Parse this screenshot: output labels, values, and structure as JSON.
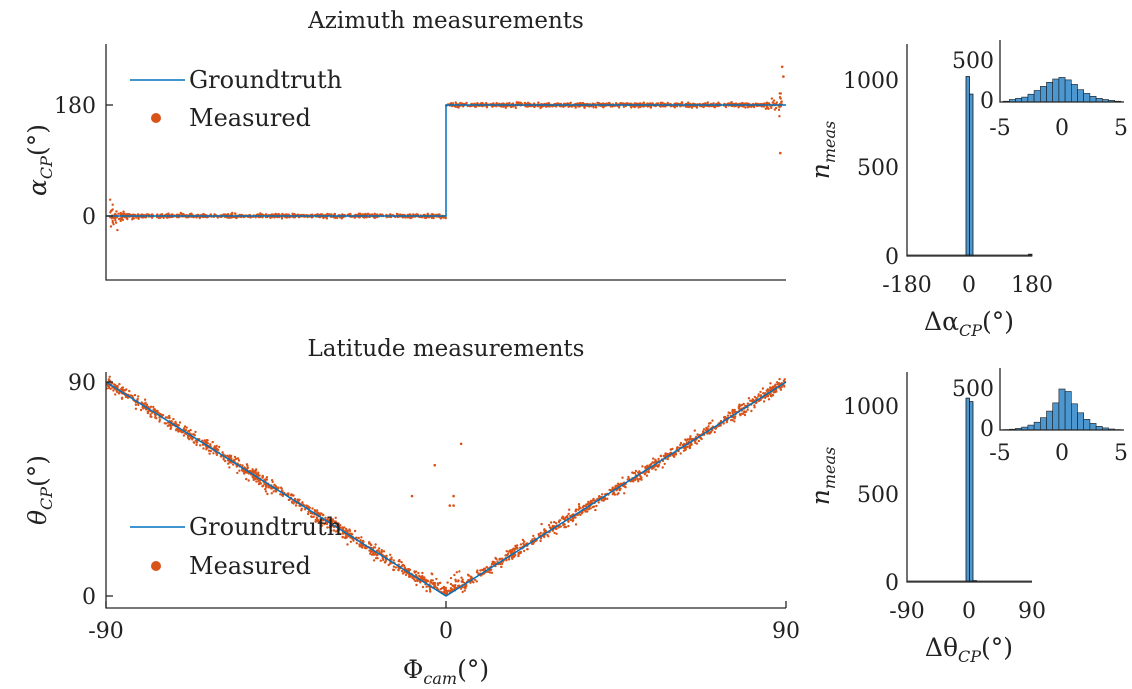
{
  "chart_data": [
    {
      "type": "scatter",
      "title": "Azimuth measurements",
      "xlabel": "",
      "ylabel": {
        "base": "α",
        "sub": "CP",
        "unit": "(°)"
      },
      "xlim": [
        -90,
        90
      ],
      "ylim": [
        -80,
        230
      ],
      "yticks": [
        "0",
        "180"
      ],
      "legend": {
        "position": "top-left",
        "entries": [
          "Groundtruth",
          "Measured"
        ]
      },
      "grid": false,
      "series": [
        {
          "name": "Groundtruth",
          "style": "line",
          "color": "#0072BD",
          "points": [
            [
              -90,
              0
            ],
            [
              0,
              0
            ],
            [
              0,
              180
            ],
            [
              90,
              180
            ]
          ]
        },
        {
          "name": "Measured",
          "style": "markers",
          "color": "#D95319",
          "description_values": {
            "x_range": [
              -90,
              90
            ],
            "noise_sd_deg": 2,
            "left_branch_y": 0,
            "right_branch_y": 180,
            "outliers": [
              [
                89,
                242
              ],
              [
                88.5,
                102
              ],
              [
                89.3,
                226
              ]
            ]
          }
        }
      ]
    },
    {
      "type": "scatter",
      "title": "Latitude measurements",
      "xlabel": {
        "base": "Φ",
        "sub": "cam",
        "unit": "(°)"
      },
      "ylabel": {
        "base": "θ",
        "sub": "CP",
        "unit": "(°)"
      },
      "xlim": [
        -90,
        90
      ],
      "ylim": [
        -3,
        92
      ],
      "xticks": [
        "-90",
        "0",
        "90"
      ],
      "yticks": [
        "0",
        "90"
      ],
      "legend": {
        "position": "bottom-left",
        "entries": [
          "Groundtruth",
          "Measured"
        ]
      },
      "grid": false,
      "series": [
        {
          "name": "Groundtruth",
          "style": "line",
          "color": "#0072BD",
          "points": [
            [
              -90,
              90
            ],
            [
              0,
              0
            ],
            [
              90,
              90
            ]
          ]
        },
        {
          "name": "Measured",
          "style": "markers",
          "color": "#D95319",
          "description_values": {
            "relation": "y = |x|",
            "noise_sd_deg": 1.5,
            "outliers": [
              [
                -3,
                55
              ],
              [
                4,
                64
              ],
              [
                -9,
                42
              ],
              [
                2,
                42
              ],
              [
                1,
                38
              ],
              [
                2,
                38
              ]
            ]
          }
        }
      ]
    },
    {
      "type": "bar",
      "title": "",
      "xlabel": {
        "base": "Δα",
        "sub": "CP",
        "unit": "(°)"
      },
      "ylabel": {
        "base": "n",
        "sub": "meas"
      },
      "xlim": [
        -180,
        180
      ],
      "ylim": [
        0,
        1200
      ],
      "xticks": [
        "-180",
        "0",
        "180"
      ],
      "yticks": [
        "0",
        "500",
        "1000"
      ],
      "color": "#4C97CF",
      "bins": [
        [
          -10,
          0,
          1020
        ],
        [
          0,
          10,
          920
        ],
        [
          170,
          180,
          10
        ]
      ],
      "inset": {
        "xlim": [
          -5,
          5
        ],
        "ylim": [
          0,
          750
        ],
        "xticks": [
          "-5",
          "0",
          "5"
        ],
        "yticks": [
          "0",
          "500"
        ],
        "bin_centers": [
          -4.5,
          -4,
          -3.5,
          -3,
          -2.5,
          -2,
          -1.5,
          -1,
          -0.5,
          0,
          0.5,
          1,
          1.5,
          2,
          2.5,
          3,
          3.5,
          4,
          4.5
        ],
        "values": [
          10,
          30,
          45,
          60,
          95,
          140,
          190,
          240,
          280,
          300,
          270,
          215,
          150,
          105,
          70,
          45,
          30,
          20,
          10
        ]
      }
    },
    {
      "type": "bar",
      "title": "",
      "xlabel": {
        "base": "Δθ",
        "sub": "CP",
        "unit": "(°)"
      },
      "ylabel": {
        "base": "n",
        "sub": "meas"
      },
      "xlim": [
        -90,
        90
      ],
      "ylim": [
        0,
        1200
      ],
      "xticks": [
        "-90",
        "0",
        "90"
      ],
      "yticks": [
        "0",
        "500",
        "1000"
      ],
      "color": "#4C97CF",
      "bins": [
        [
          -5,
          0,
          1045
        ],
        [
          0,
          5,
          1025
        ],
        [
          5,
          10,
          8
        ]
      ],
      "inset": {
        "xlim": [
          -5,
          5
        ],
        "ylim": [
          0,
          750
        ],
        "xticks": [
          "-5",
          "0",
          "5"
        ],
        "yticks": [
          "0",
          "500"
        ],
        "bin_centers": [
          -4.5,
          -4,
          -3.5,
          -3,
          -2.5,
          -2,
          -1.5,
          -1,
          -0.5,
          0,
          0.5,
          1,
          1.5,
          2,
          2.5,
          3,
          3.5,
          4,
          4.5
        ],
        "values": [
          5,
          10,
          20,
          35,
          60,
          95,
          150,
          230,
          330,
          500,
          470,
          320,
          210,
          130,
          80,
          45,
          25,
          12,
          5
        ]
      }
    }
  ]
}
